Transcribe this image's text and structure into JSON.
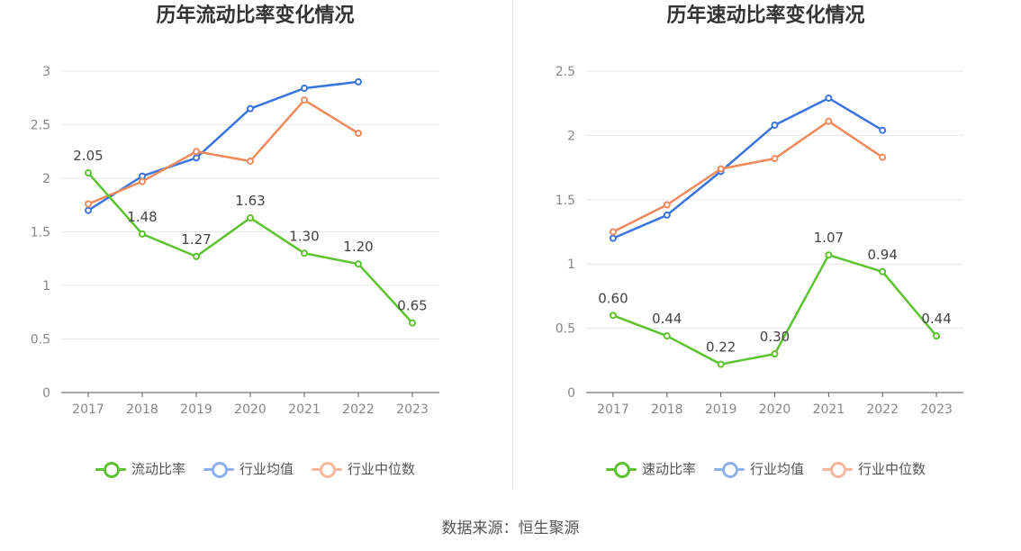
{
  "source": "数据来源：恒生聚源",
  "colors": {
    "company": "#5cc22e",
    "industry_avg": "#3a74dd",
    "industry_median": "#f08a5d"
  },
  "chart_data": [
    {
      "type": "line",
      "title": "历年流动比率变化情况",
      "categories": [
        "2017",
        "2018",
        "2019",
        "2020",
        "2021",
        "2022",
        "2023"
      ],
      "ylim": [
        0,
        3
      ],
      "yticks": [
        "0",
        "0.5",
        "1",
        "1.5",
        "2",
        "2.5",
        "3"
      ],
      "grid": true,
      "legend_position": "bottom",
      "series": [
        {
          "name": "流动比率",
          "values": [
            2.05,
            1.48,
            1.27,
            1.63,
            1.3,
            1.2,
            0.65
          ],
          "labels": [
            "2.05",
            "1.48",
            "1.27",
            "1.63",
            "1.30",
            "1.20",
            "0.65"
          ]
        },
        {
          "name": "行业均值",
          "values": [
            1.7,
            2.02,
            2.19,
            2.65,
            2.84,
            2.9,
            null
          ]
        },
        {
          "name": "行业中位数",
          "values": [
            1.76,
            1.97,
            2.25,
            2.16,
            2.73,
            2.42,
            null
          ]
        }
      ]
    },
    {
      "type": "line",
      "title": "历年速动比率变化情况",
      "categories": [
        "2017",
        "2018",
        "2019",
        "2020",
        "2021",
        "2022",
        "2023"
      ],
      "ylim": [
        0,
        2.5
      ],
      "yticks": [
        "0",
        "0.5",
        "1",
        "1.5",
        "2",
        "2.5"
      ],
      "grid": true,
      "legend_position": "bottom",
      "series": [
        {
          "name": "速动比率",
          "values": [
            0.6,
            0.44,
            0.22,
            0.3,
            1.07,
            0.94,
            0.44
          ],
          "labels": [
            "0.60",
            "0.44",
            "0.22",
            "0.30",
            "1.07",
            "0.94",
            "0.44"
          ]
        },
        {
          "name": "行业均值",
          "values": [
            1.2,
            1.38,
            1.72,
            2.08,
            2.29,
            2.04,
            null
          ]
        },
        {
          "name": "行业中位数",
          "values": [
            1.25,
            1.46,
            1.74,
            1.82,
            2.11,
            1.83,
            null
          ]
        }
      ]
    }
  ]
}
